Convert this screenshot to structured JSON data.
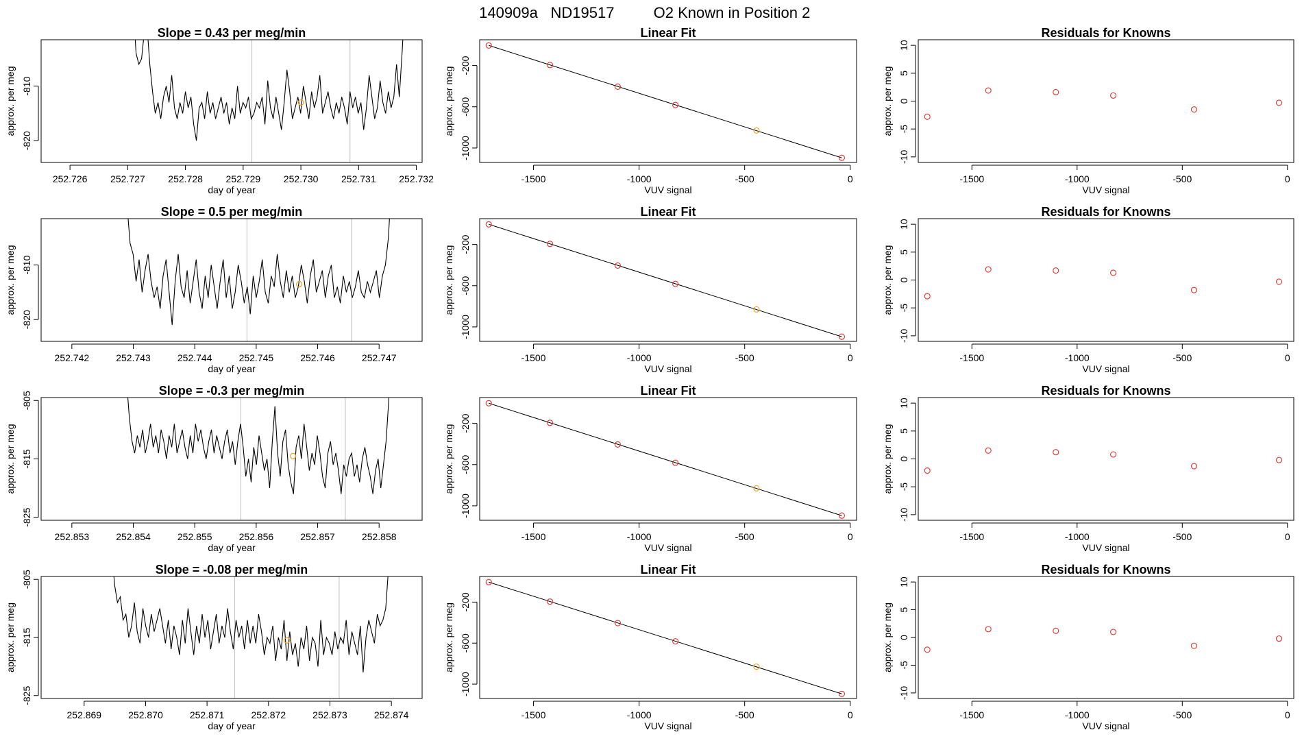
{
  "figure": {
    "super_title": {
      "run_id": "140909a",
      "tank_id": "ND19517",
      "description": "O2 Known in Position  2"
    }
  },
  "colors": {
    "series_line": "#000000",
    "fit_line": "#000000",
    "point_red": "#e0302a",
    "point_orange": "#f0a020",
    "vline": "#c8c8c8"
  },
  "chart_data": [
    {
      "type": "line",
      "row": 0,
      "col": 0,
      "title": "Slope =  0.43  per meg/min",
      "xlabel": "day of year",
      "ylabel": "approx. per meg",
      "xlim": [
        252.7255,
        252.7321
      ],
      "ylim": [
        -824,
        -801.5
      ],
      "xticks": [
        252.726,
        252.727,
        252.728,
        252.729,
        252.73,
        252.731,
        252.732
      ],
      "xtick_labels": [
        "252.726",
        "252.727",
        "252.728",
        "252.729",
        "252.730",
        "252.731",
        "252.732"
      ],
      "yticks": [
        -810,
        -820
      ],
      "ytick_labels": [
        "-810",
        "-820"
      ],
      "series": {
        "x_start": 252.72705,
        "x_end": 252.7318,
        "points": [
          -790,
          -796,
          -804,
          -806,
          -805,
          -800,
          -799,
          -806,
          -811,
          -815,
          -813,
          -816,
          -812,
          -810,
          -813,
          -808,
          -814,
          -816,
          -813,
          -815,
          -811,
          -814,
          -812,
          -817,
          -820,
          -814,
          -813,
          -816,
          -811,
          -815,
          -813,
          -816,
          -814,
          -812,
          -815,
          -813,
          -817,
          -814,
          -816,
          -810,
          -815,
          -813,
          -814,
          -812,
          -816,
          -815,
          -813,
          -814,
          -812,
          -817,
          -809,
          -814,
          -816,
          -812,
          -815,
          -818,
          -813,
          -807,
          -811,
          -816,
          -814,
          -812,
          -815,
          -810,
          -813,
          -816,
          -811,
          -814,
          -812,
          -808,
          -815,
          -813,
          -811,
          -814,
          -816,
          -813,
          -815,
          -812,
          -814,
          -817,
          -811,
          -814,
          -812,
          -815,
          -813,
          -818,
          -814,
          -808,
          -812,
          -816,
          -814,
          -809,
          -813,
          -815,
          -811,
          -814,
          -812,
          -806,
          -812,
          -804,
          -795
        ]
      },
      "highlight_point": {
        "x": 252.73,
        "y": -813
      },
      "vlines": [
        252.72915,
        252.73085
      ]
    },
    {
      "type": "scatter",
      "row": 0,
      "col": 1,
      "title": "Linear Fit",
      "xlabel": "VUV signal",
      "ylabel": "approx. per meg",
      "xlim": [
        -1755,
        30
      ],
      "ylim": [
        -1140,
        50
      ],
      "xticks": [
        -1500,
        -1000,
        -500,
        0
      ],
      "xtick_labels": [
        "-1500",
        "-1000",
        "-500",
        "0"
      ],
      "yticks": [
        -200,
        -600,
        -1000
      ],
      "ytick_labels": [
        "-200",
        "-600",
        "-1000"
      ],
      "points_x": [
        -1712,
        -1422,
        -1101,
        -828,
        -444,
        -40
      ],
      "points_y": [
        -5,
        -195,
        -405,
        -583,
        -830,
        -1095
      ],
      "orange_index": 4,
      "fit_line": {
        "x": [
          -1712,
          -40
        ],
        "y": [
          -5,
          -1095
        ]
      }
    },
    {
      "type": "scatter",
      "row": 0,
      "col": 2,
      "title": "Residuals for Knowns",
      "xlabel": "VUV signal",
      "ylabel": "approx. per meg",
      "xlim": [
        -1755,
        30
      ],
      "ylim": [
        -11,
        11
      ],
      "xticks": [
        -1500,
        -1000,
        -500,
        0
      ],
      "xtick_labels": [
        "-1500",
        "-1000",
        "-500",
        "0"
      ],
      "yticks": [
        10,
        5,
        0,
        -5,
        -10
      ],
      "ytick_labels": [
        "10",
        "5",
        "0",
        "-5",
        "-10"
      ],
      "points_x": [
        -1712,
        -1422,
        -1101,
        -828,
        -444,
        -40
      ],
      "points_y": [
        -2.8,
        1.9,
        1.6,
        1.0,
        -1.5,
        -0.3
      ]
    },
    {
      "type": "line",
      "row": 1,
      "col": 0,
      "title": "Slope =  0.5  per meg/min",
      "xlabel": "day of year",
      "ylabel": "approx. per meg",
      "xlim": [
        252.7415,
        252.7477
      ],
      "ylim": [
        -824,
        -801.5
      ],
      "xticks": [
        252.742,
        252.743,
        252.744,
        252.745,
        252.746,
        252.747
      ],
      "xtick_labels": [
        "252.742",
        "252.743",
        "252.744",
        "252.745",
        "252.746",
        "252.747"
      ],
      "yticks": [
        -810,
        -820
      ],
      "ytick_labels": [
        "-810",
        "-820"
      ],
      "series": {
        "x_start": 252.74285,
        "x_end": 252.7472,
        "points": [
          -792,
          -799,
          -806,
          -808,
          -813,
          -809,
          -815,
          -811,
          -808,
          -813,
          -816,
          -814,
          -818,
          -812,
          -809,
          -815,
          -821,
          -813,
          -808,
          -814,
          -816,
          -811,
          -817,
          -813,
          -809,
          -815,
          -818,
          -812,
          -816,
          -810,
          -814,
          -818,
          -813,
          -809,
          -816,
          -812,
          -818,
          -815,
          -810,
          -813,
          -817,
          -814,
          -819,
          -812,
          -816,
          -813,
          -809,
          -815,
          -817,
          -812,
          -814,
          -808,
          -813,
          -816,
          -811,
          -815,
          -812,
          -816,
          -814,
          -810,
          -813,
          -817,
          -812,
          -809,
          -815,
          -813,
          -811,
          -816,
          -812,
          -810,
          -816,
          -814,
          -817,
          -812,
          -815,
          -813,
          -816,
          -814,
          -811,
          -815,
          -816,
          -813,
          -815,
          -813,
          -811,
          -816,
          -812,
          -810,
          -805,
          -795
        ]
      },
      "highlight_point": {
        "x": 252.7457,
        "y": -813.5
      },
      "vlines": [
        252.74485,
        252.74655
      ]
    },
    {
      "type": "scatter",
      "row": 1,
      "col": 1,
      "title": "Linear Fit",
      "xlabel": "VUV signal",
      "ylabel": "approx. per meg",
      "xlim": [
        -1755,
        30
      ],
      "ylim": [
        -1140,
        50
      ],
      "xticks": [
        -1500,
        -1000,
        -500,
        0
      ],
      "xtick_labels": [
        "-1500",
        "-1000",
        "-500",
        "0"
      ],
      "yticks": [
        -200,
        -600,
        -1000
      ],
      "ytick_labels": [
        "-200",
        "-600",
        "-1000"
      ],
      "points_x": [
        -1712,
        -1422,
        -1101,
        -828,
        -444,
        -40
      ],
      "points_y": [
        -5,
        -195,
        -405,
        -583,
        -830,
        -1095
      ],
      "orange_index": 4,
      "fit_line": {
        "x": [
          -1712,
          -40
        ],
        "y": [
          -5,
          -1095
        ]
      }
    },
    {
      "type": "scatter",
      "row": 1,
      "col": 2,
      "title": "Residuals for Knowns",
      "xlabel": "VUV signal",
      "ylabel": "approx. per meg",
      "xlim": [
        -1755,
        30
      ],
      "ylim": [
        -11,
        11
      ],
      "xticks": [
        -1500,
        -1000,
        -500,
        0
      ],
      "xtick_labels": [
        "-1500",
        "-1000",
        "-500",
        "0"
      ],
      "yticks": [
        10,
        5,
        0,
        -5,
        -10
      ],
      "ytick_labels": [
        "10",
        "5",
        "0",
        "-5",
        "-10"
      ],
      "points_x": [
        -1712,
        -1422,
        -1101,
        -828,
        -444,
        -40
      ],
      "points_y": [
        -2.9,
        1.9,
        1.7,
        1.3,
        -1.8,
        -0.3
      ]
    },
    {
      "type": "line",
      "row": 2,
      "col": 0,
      "title": "Slope =  -0.3  per meg/min",
      "xlabel": "day of year",
      "ylabel": "approx. per meg",
      "xlim": [
        252.8525,
        252.8587
      ],
      "ylim": [
        -825.5,
        -804.5
      ],
      "xticks": [
        252.853,
        252.854,
        252.855,
        252.856,
        252.857,
        252.858
      ],
      "xtick_labels": [
        "252.853",
        "252.854",
        "252.855",
        "252.856",
        "252.857",
        "252.858"
      ],
      "yticks": [
        -805,
        -815,
        -825
      ],
      "ytick_labels": [
        "-805",
        "-815",
        "-825"
      ],
      "series": {
        "x_start": 252.85385,
        "x_end": 252.8582,
        "points": [
          -795,
          -802,
          -808,
          -812,
          -814,
          -811,
          -813,
          -810,
          -814,
          -812,
          -809,
          -813,
          -811,
          -814,
          -810,
          -812,
          -815,
          -811,
          -813,
          -809,
          -814,
          -812,
          -810,
          -813,
          -815,
          -811,
          -814,
          -809,
          -812,
          -810,
          -813,
          -815,
          -812,
          -810,
          -814,
          -811,
          -813,
          -815,
          -812,
          -810,
          -814,
          -812,
          -816,
          -812,
          -809,
          -813,
          -818,
          -815,
          -819,
          -813,
          -816,
          -811,
          -814,
          -817,
          -815,
          -820,
          -812,
          -806,
          -814,
          -818,
          -812,
          -810,
          -816,
          -819,
          -821,
          -813,
          -811,
          -815,
          -809,
          -813,
          -817,
          -814,
          -816,
          -811,
          -814,
          -818,
          -820,
          -814,
          -812,
          -816,
          -814,
          -817,
          -821,
          -816,
          -818,
          -815,
          -814,
          -818,
          -816,
          -819,
          -815,
          -813,
          -816,
          -818,
          -821,
          -817,
          -815,
          -820,
          -816,
          -812,
          -805,
          -795
        ]
      },
      "highlight_point": {
        "x": 252.8566,
        "y": -814.5
      },
      "vlines": [
        252.85575,
        252.85745
      ]
    },
    {
      "type": "scatter",
      "row": 2,
      "col": 1,
      "title": "Linear Fit",
      "xlabel": "VUV signal",
      "ylabel": "approx. per meg",
      "xlim": [
        -1755,
        30
      ],
      "ylim": [
        -1140,
        50
      ],
      "xticks": [
        -1500,
        -1000,
        -500,
        0
      ],
      "xtick_labels": [
        "-1500",
        "-1000",
        "-500",
        "0"
      ],
      "yticks": [
        -200,
        -600,
        -1000
      ],
      "ytick_labels": [
        "-200",
        "-600",
        "-1000"
      ],
      "points_x": [
        -1712,
        -1422,
        -1101,
        -828,
        -444,
        -40
      ],
      "points_y": [
        -5,
        -195,
        -405,
        -583,
        -830,
        -1095
      ],
      "orange_index": 4,
      "fit_line": {
        "x": [
          -1712,
          -40
        ],
        "y": [
          -5,
          -1095
        ]
      }
    },
    {
      "type": "scatter",
      "row": 2,
      "col": 2,
      "title": "Residuals for Knowns",
      "xlabel": "VUV signal",
      "ylabel": "approx. per meg",
      "xlim": [
        -1755,
        30
      ],
      "ylim": [
        -11,
        11
      ],
      "xticks": [
        -1500,
        -1000,
        -500,
        0
      ],
      "xtick_labels": [
        "-1500",
        "-1000",
        "-500",
        "0"
      ],
      "yticks": [
        10,
        5,
        0,
        -5,
        -10
      ],
      "ytick_labels": [
        "10",
        "5",
        "0",
        "-5",
        "-10"
      ],
      "points_x": [
        -1712,
        -1422,
        -1101,
        -828,
        -444,
        -40
      ],
      "points_y": [
        -2.1,
        1.5,
        1.2,
        0.8,
        -1.3,
        -0.2
      ]
    },
    {
      "type": "line",
      "row": 3,
      "col": 0,
      "title": "Slope =  -0.08  per meg/min",
      "xlabel": "day of year",
      "ylabel": "approx. per meg",
      "xlim": [
        252.8683,
        252.8745
      ],
      "ylim": [
        -825.5,
        -804.5
      ],
      "xticks": [
        252.869,
        252.87,
        252.871,
        252.872,
        252.873,
        252.874
      ],
      "xtick_labels": [
        "252.869",
        "252.870",
        "252.871",
        "252.872",
        "252.873",
        "252.874"
      ],
      "yticks": [
        -805,
        -815,
        -825
      ],
      "ytick_labels": [
        "-805",
        "-815",
        "-825"
      ],
      "series": {
        "x_start": 252.86945,
        "x_end": 252.874,
        "points": [
          -800,
          -806,
          -809,
          -808,
          -812,
          -811,
          -815,
          -813,
          -809,
          -814,
          -816,
          -810,
          -813,
          -815,
          -811,
          -814,
          -812,
          -810,
          -813,
          -816,
          -812,
          -817,
          -813,
          -815,
          -818,
          -812,
          -816,
          -810,
          -814,
          -818,
          -813,
          -816,
          -811,
          -815,
          -812,
          -817,
          -814,
          -811,
          -816,
          -813,
          -815,
          -810,
          -814,
          -817,
          -812,
          -815,
          -813,
          -817,
          -812,
          -816,
          -813,
          -816,
          -811,
          -814,
          -818,
          -815,
          -816,
          -813,
          -819,
          -815,
          -817,
          -812,
          -819,
          -814,
          -818,
          -816,
          -820,
          -815,
          -817,
          -813,
          -819,
          -815,
          -816,
          -820,
          -812,
          -818,
          -815,
          -816,
          -818,
          -814,
          -817,
          -815,
          -816,
          -812,
          -818,
          -814,
          -816,
          -818,
          -813,
          -821,
          -815,
          -812,
          -814,
          -816,
          -811,
          -813,
          -812,
          -810,
          -803,
          -794
        ]
      },
      "highlight_point": {
        "x": 252.8723,
        "y": -815.5
      },
      "vlines": [
        252.87145,
        252.87315
      ]
    },
    {
      "type": "scatter",
      "row": 3,
      "col": 1,
      "title": "Linear Fit",
      "xlabel": "VUV signal",
      "ylabel": "approx. per meg",
      "xlim": [
        -1755,
        30
      ],
      "ylim": [
        -1140,
        50
      ],
      "xticks": [
        -1500,
        -1000,
        -500,
        0
      ],
      "xtick_labels": [
        "-1500",
        "-1000",
        "-500",
        "0"
      ],
      "yticks": [
        -200,
        -600,
        -1000
      ],
      "ytick_labels": [
        "-200",
        "-600",
        "-1000"
      ],
      "points_x": [
        -1712,
        -1422,
        -1101,
        -828,
        -444,
        -40
      ],
      "points_y": [
        -5,
        -195,
        -405,
        -583,
        -830,
        -1095
      ],
      "orange_index": 4,
      "fit_line": {
        "x": [
          -1712,
          -40
        ],
        "y": [
          -5,
          -1095
        ]
      }
    },
    {
      "type": "scatter",
      "row": 3,
      "col": 2,
      "title": "Residuals for Knowns",
      "xlabel": "VUV signal",
      "ylabel": "approx. per meg",
      "xlim": [
        -1755,
        30
      ],
      "ylim": [
        -11,
        11
      ],
      "xticks": [
        -1500,
        -1000,
        -500,
        0
      ],
      "xtick_labels": [
        "-1500",
        "-1000",
        "-500",
        "0"
      ],
      "yticks": [
        10,
        5,
        0,
        -5,
        -10
      ],
      "ytick_labels": [
        "10",
        "5",
        "0",
        "-5",
        "-10"
      ],
      "points_x": [
        -1712,
        -1422,
        -1101,
        -828,
        -444,
        -40
      ],
      "points_y": [
        -2.2,
        1.5,
        1.2,
        1.0,
        -1.5,
        -0.2
      ]
    }
  ]
}
